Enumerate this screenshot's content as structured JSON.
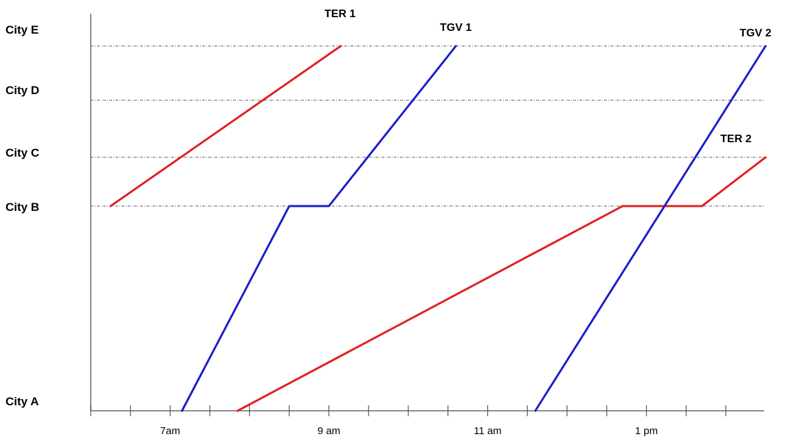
{
  "chart_data": {
    "type": "line",
    "stations": [
      "City A",
      "City B",
      "City C",
      "City D",
      "City E"
    ],
    "x_tick_labels": [
      "7am",
      "9 am",
      "11 am",
      "1 pm"
    ],
    "x_tick_label_hours": [
      7,
      9,
      11,
      13
    ],
    "x_unit": "hour of day",
    "xlim": [
      6,
      14.5
    ],
    "ylim": [
      0,
      4
    ],
    "grid": "dash-dot horizontal lines at City B, City C, City D, City E",
    "minor_tick_step_hours": 0.5,
    "series": [
      {
        "name": "TER 1",
        "color": "#e02020",
        "points": [
          [
            6.25,
            1
          ],
          [
            9.15,
            4
          ]
        ]
      },
      {
        "name": "TGV 1",
        "color": "#1c1ccc",
        "points": [
          [
            7.15,
            0
          ],
          [
            8.5,
            1
          ],
          [
            9.0,
            1
          ],
          [
            10.6,
            4
          ]
        ]
      },
      {
        "name": "TER 2",
        "color": "#e02020",
        "points": [
          [
            7.85,
            0
          ],
          [
            12.7,
            1
          ],
          [
            13.7,
            1
          ],
          [
            14.5,
            2
          ]
        ]
      },
      {
        "name": "TGV 2",
        "color": "#1c1ccc",
        "points": [
          [
            11.6,
            0
          ],
          [
            14.5,
            4
          ]
        ]
      }
    ]
  }
}
